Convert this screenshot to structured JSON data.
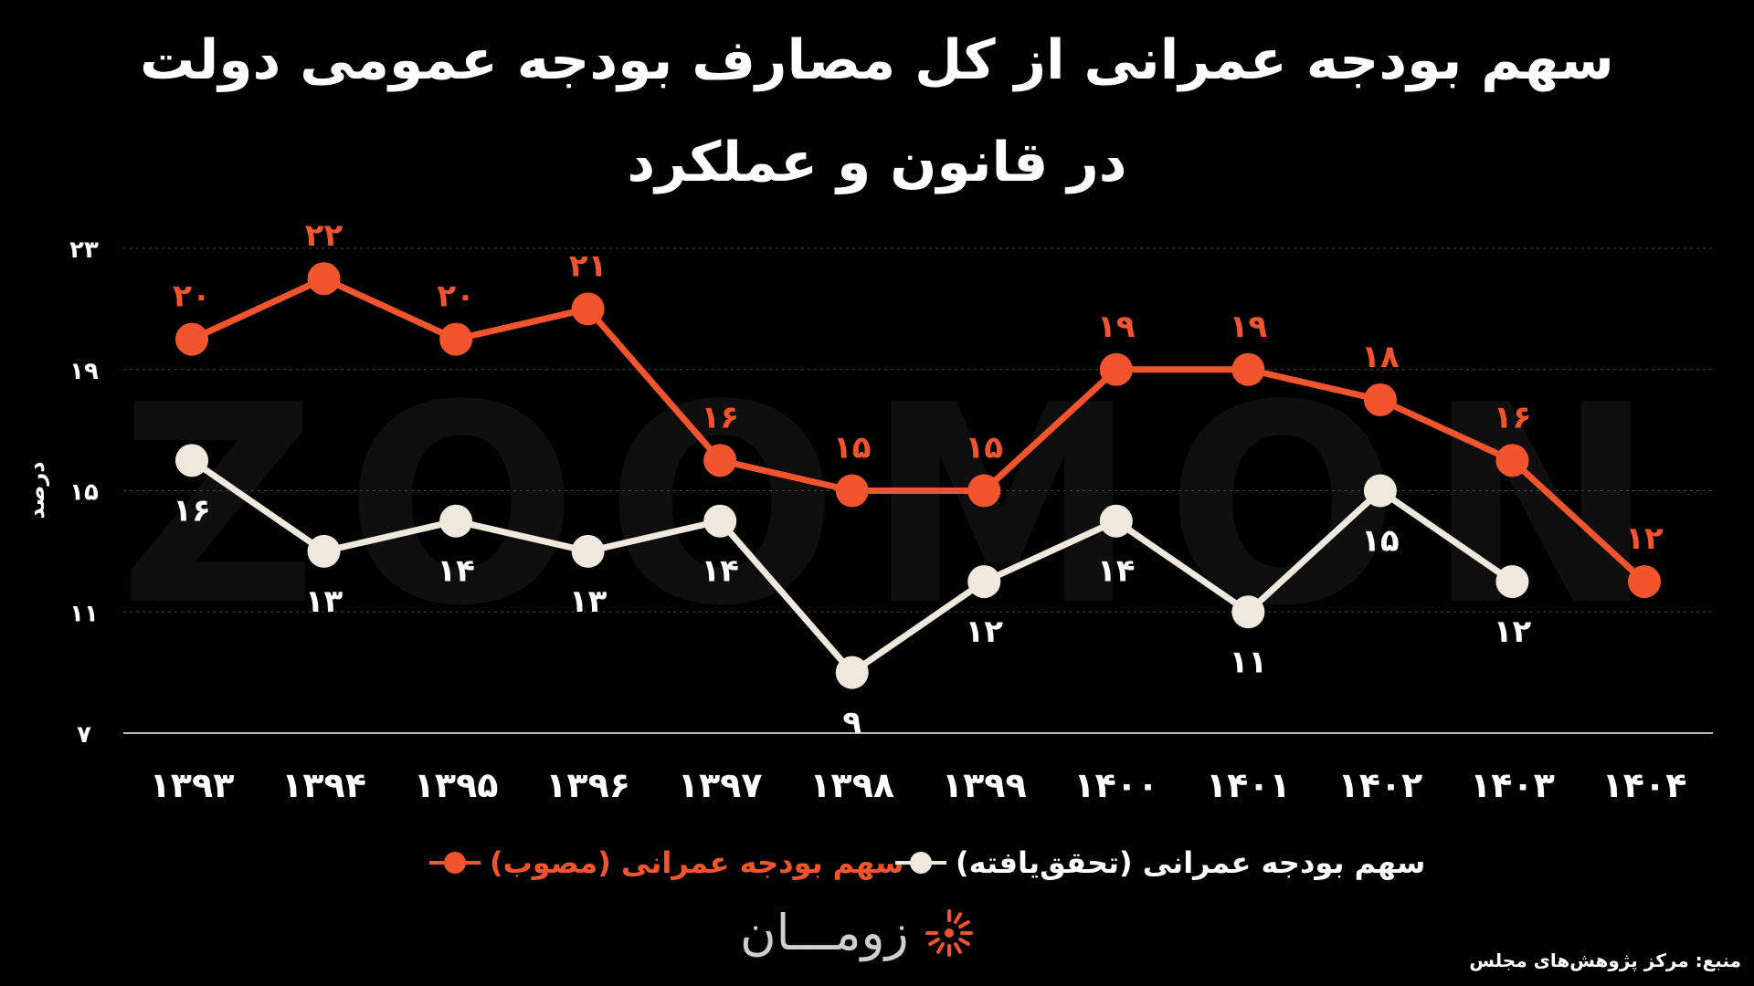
{
  "title_line_1": "سهم بودجه عمرانی از کل مصارف بودجه عمومی دولت",
  "title_line_2": "در قانون و عملکرد",
  "watermark": "ZOOMON",
  "legend": {
    "approved_label": "سهم بودجه عمرانی (مصوب)",
    "realized_label": "سهم بودجه عمرانی (تحقق‌یافته)"
  },
  "brand": {
    "name": "زومـــان",
    "logo_icon": "sunburst-logo-icon"
  },
  "source": "منبع: مرکز پژوهش‌های مجلس",
  "colors": {
    "background": "#000000",
    "approved": "#f2542d",
    "realized": "#efe9dd",
    "grid": "#444444",
    "text": "#ffffff"
  },
  "chart_data": {
    "type": "line",
    "title": "سهم بودجه عمرانی از کل مصارف بودجه عمومی دولت در قانون و عملکرد",
    "ylabel": "درصد",
    "xlabel": "",
    "categories": [
      "۱۳۹۳",
      "۱۳۹۴",
      "۱۳۹۵",
      "۱۳۹۶",
      "۱۳۹۷",
      "۱۳۹۸",
      "۱۳۹۹",
      "۱۴۰۰",
      "۱۴۰۱",
      "۱۴۰۲",
      "۱۴۰۳",
      "۱۴۰۴"
    ],
    "ylim": [
      7,
      23
    ],
    "yticks": [
      7,
      11,
      15,
      19,
      23
    ],
    "ytick_labels": [
      "۷",
      "۱۱",
      "۱۵",
      "۱۹",
      "۲۳"
    ],
    "grid": true,
    "legend_position": "bottom",
    "series": [
      {
        "name": "سهم بودجه عمرانی (مصوب)",
        "color": "#f2542d",
        "values": [
          20,
          22,
          20,
          21,
          16,
          15,
          15,
          19,
          19,
          18,
          16,
          12
        ],
        "labels": [
          "۲۰",
          "۲۲",
          "۲۰",
          "۲۱",
          "۱۶",
          "۱۵",
          "۱۵",
          "۱۹",
          "۱۹",
          "۱۸",
          "۱۶",
          "۱۲"
        ],
        "label_position": "above"
      },
      {
        "name": "سهم بودجه عمرانی (تحقق‌یافته)",
        "color": "#efe9dd",
        "values": [
          16,
          13,
          14,
          13,
          14,
          9,
          12,
          14,
          11,
          15,
          12,
          null
        ],
        "labels": [
          "۱۶",
          "۱۳",
          "۱۴",
          "۱۳",
          "۱۴",
          "۹",
          "۱۲",
          "۱۴",
          "۱۱",
          "۱۵",
          "۱۲",
          ""
        ],
        "label_position": "below"
      }
    ]
  }
}
